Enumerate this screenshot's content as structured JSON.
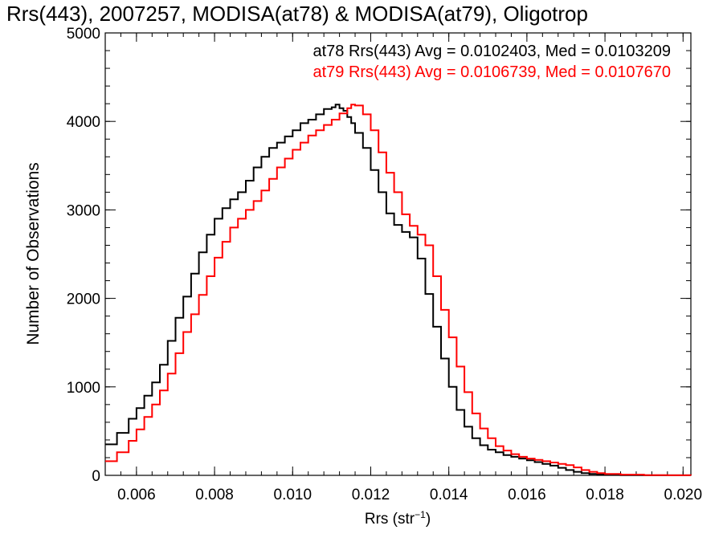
{
  "chart_data": {
    "type": "line",
    "title": "Rrs(443), 2007257, MODISA(at78) & MODISA(at79), Oligotrop",
    "xlabel_main": "Rrs (str",
    "xlabel_sup": "−1",
    "xlabel_close": ")",
    "ylabel": "Number of Observations",
    "xlim": [
      0.0052,
      0.0202
    ],
    "ylim": [
      0,
      5000
    ],
    "x_ticks": [
      0.006,
      0.008,
      0.01,
      0.012,
      0.014,
      0.016,
      0.018,
      0.02
    ],
    "x_tick_labels": [
      "0.006",
      "0.008",
      "0.010",
      "0.012",
      "0.014",
      "0.016",
      "0.018",
      "0.020"
    ],
    "y_ticks": [
      0,
      1000,
      2000,
      3000,
      4000,
      5000
    ],
    "y_tick_labels": [
      "0",
      "1000",
      "2000",
      "3000",
      "4000",
      "5000"
    ],
    "legend_placement": "top-right",
    "series": [
      {
        "name": "at78 Rrs(443) Avg = 0.0102403, Med = 0.0103209",
        "color": "#000000",
        "points": [
          [
            0.0052,
            350
          ],
          [
            0.0055,
            480
          ],
          [
            0.0058,
            640
          ],
          [
            0.006,
            760
          ],
          [
            0.0062,
            900
          ],
          [
            0.0064,
            1050
          ],
          [
            0.0066,
            1250
          ],
          [
            0.0068,
            1520
          ],
          [
            0.007,
            1780
          ],
          [
            0.0072,
            2020
          ],
          [
            0.0074,
            2280
          ],
          [
            0.0076,
            2520
          ],
          [
            0.0078,
            2720
          ],
          [
            0.008,
            2900
          ],
          [
            0.0082,
            3020
          ],
          [
            0.0084,
            3120
          ],
          [
            0.0086,
            3200
          ],
          [
            0.0088,
            3330
          ],
          [
            0.009,
            3480
          ],
          [
            0.0092,
            3600
          ],
          [
            0.0094,
            3700
          ],
          [
            0.0096,
            3760
          ],
          [
            0.0098,
            3830
          ],
          [
            0.01,
            3900
          ],
          [
            0.0102,
            3980
          ],
          [
            0.0104,
            4020
          ],
          [
            0.0106,
            4080
          ],
          [
            0.0108,
            4140
          ],
          [
            0.011,
            4160
          ],
          [
            0.0111,
            4190
          ],
          [
            0.0112,
            4150
          ],
          [
            0.0113,
            4120
          ],
          [
            0.0114,
            4050
          ],
          [
            0.0115,
            3980
          ],
          [
            0.0116,
            3870
          ],
          [
            0.0118,
            3700
          ],
          [
            0.012,
            3450
          ],
          [
            0.0122,
            3200
          ],
          [
            0.0124,
            2960
          ],
          [
            0.0126,
            2830
          ],
          [
            0.0128,
            2750
          ],
          [
            0.013,
            2690
          ],
          [
            0.0132,
            2450
          ],
          [
            0.0134,
            2050
          ],
          [
            0.0136,
            1680
          ],
          [
            0.0138,
            1320
          ],
          [
            0.014,
            1000
          ],
          [
            0.0142,
            740
          ],
          [
            0.0144,
            550
          ],
          [
            0.0146,
            420
          ],
          [
            0.0148,
            340
          ],
          [
            0.015,
            290
          ],
          [
            0.0152,
            260
          ],
          [
            0.0154,
            230
          ],
          [
            0.0156,
            210
          ],
          [
            0.0158,
            190
          ],
          [
            0.016,
            170
          ],
          [
            0.0162,
            150
          ],
          [
            0.0164,
            130
          ],
          [
            0.0166,
            110
          ],
          [
            0.0168,
            85
          ],
          [
            0.017,
            60
          ],
          [
            0.0172,
            40
          ],
          [
            0.0174,
            25
          ],
          [
            0.0176,
            15
          ],
          [
            0.0178,
            10
          ],
          [
            0.018,
            6
          ],
          [
            0.0184,
            3
          ],
          [
            0.019,
            1
          ],
          [
            0.0202,
            0
          ]
        ]
      },
      {
        "name": "at79 Rrs(443) Avg = 0.0106739, Med = 0.0107670",
        "color": "#ff0000",
        "points": [
          [
            0.0052,
            160
          ],
          [
            0.0055,
            260
          ],
          [
            0.0058,
            390
          ],
          [
            0.006,
            520
          ],
          [
            0.0062,
            660
          ],
          [
            0.0064,
            800
          ],
          [
            0.0066,
            960
          ],
          [
            0.0068,
            1150
          ],
          [
            0.007,
            1380
          ],
          [
            0.0072,
            1620
          ],
          [
            0.0074,
            1820
          ],
          [
            0.0076,
            2040
          ],
          [
            0.0078,
            2250
          ],
          [
            0.008,
            2460
          ],
          [
            0.0082,
            2640
          ],
          [
            0.0084,
            2800
          ],
          [
            0.0086,
            2900
          ],
          [
            0.0088,
            3000
          ],
          [
            0.009,
            3100
          ],
          [
            0.0092,
            3220
          ],
          [
            0.0094,
            3350
          ],
          [
            0.0096,
            3480
          ],
          [
            0.0098,
            3580
          ],
          [
            0.01,
            3680
          ],
          [
            0.0102,
            3760
          ],
          [
            0.0104,
            3840
          ],
          [
            0.0106,
            3900
          ],
          [
            0.0108,
            3960
          ],
          [
            0.011,
            4020
          ],
          [
            0.0112,
            4090
          ],
          [
            0.0114,
            4150
          ],
          [
            0.0115,
            4190
          ],
          [
            0.0116,
            4180
          ],
          [
            0.0118,
            4080
          ],
          [
            0.012,
            3900
          ],
          [
            0.0122,
            3650
          ],
          [
            0.0124,
            3420
          ],
          [
            0.0126,
            3200
          ],
          [
            0.0128,
            2950
          ],
          [
            0.013,
            2820
          ],
          [
            0.0132,
            2720
          ],
          [
            0.0134,
            2600
          ],
          [
            0.0136,
            2250
          ],
          [
            0.0138,
            1870
          ],
          [
            0.014,
            1560
          ],
          [
            0.0142,
            1230
          ],
          [
            0.0144,
            940
          ],
          [
            0.0146,
            700
          ],
          [
            0.0148,
            530
          ],
          [
            0.015,
            420
          ],
          [
            0.0152,
            330
          ],
          [
            0.0154,
            280
          ],
          [
            0.0156,
            240
          ],
          [
            0.0158,
            210
          ],
          [
            0.016,
            190
          ],
          [
            0.0162,
            175
          ],
          [
            0.0164,
            160
          ],
          [
            0.0166,
            145
          ],
          [
            0.0168,
            130
          ],
          [
            0.017,
            115
          ],
          [
            0.0172,
            90
          ],
          [
            0.0174,
            60
          ],
          [
            0.0176,
            40
          ],
          [
            0.0178,
            25
          ],
          [
            0.018,
            15
          ],
          [
            0.0184,
            8
          ],
          [
            0.019,
            3
          ],
          [
            0.0196,
            1
          ],
          [
            0.0202,
            0
          ]
        ]
      }
    ]
  }
}
